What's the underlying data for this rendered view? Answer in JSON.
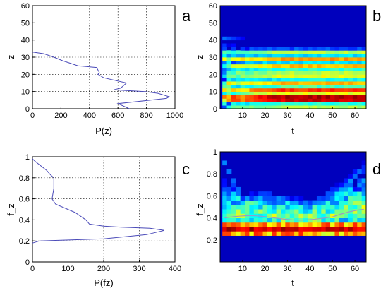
{
  "chart_data": [
    {
      "id": "a",
      "panel_letter": "a",
      "type": "line",
      "xlabel": "P(z)",
      "ylabel": "z",
      "xlim": [
        0,
        1000
      ],
      "ylim": [
        0,
        60
      ],
      "xticks": [
        "0",
        "200",
        "400",
        "600",
        "800",
        "1000"
      ],
      "yticks": [
        "0",
        "10",
        "20",
        "30",
        "40",
        "50",
        "60"
      ],
      "grid": true,
      "line_color": "#4a4ab8",
      "series": [
        {
          "x": [
            680,
            600,
            940,
            960,
            880,
            790,
            570,
            620,
            660,
            500,
            460,
            470,
            450,
            320,
            210,
            150,
            80,
            0
          ],
          "y": [
            0,
            3,
            6,
            7,
            9,
            10,
            11,
            12,
            15,
            18,
            20,
            21,
            24,
            25,
            28,
            30,
            32,
            33
          ]
        }
      ]
    },
    {
      "id": "b",
      "panel_letter": "b",
      "type": "heatmap",
      "xlabel": "t",
      "ylabel": "z",
      "xlim": [
        0,
        65
      ],
      "ylim": [
        0,
        60
      ],
      "xticks": [
        "10",
        "20",
        "30",
        "40",
        "50",
        "60"
      ],
      "yticks": [
        "0",
        "10",
        "20",
        "30",
        "40",
        "50",
        "60"
      ],
      "x_start": 1,
      "x_end": 65,
      "y_bin": 2,
      "columns": 32,
      "colormap": "jet",
      "band_profile_z": [
        0,
        2,
        4,
        6,
        8,
        10,
        12,
        14,
        16,
        18,
        20,
        22,
        24,
        26,
        28,
        30,
        32,
        34,
        36,
        38
      ],
      "band_profile_v": [
        0.55,
        0.42,
        0.92,
        0.95,
        0.6,
        0.82,
        0.45,
        0.7,
        0.38,
        0.6,
        0.55,
        0.42,
        0.68,
        0.35,
        0.72,
        0.35,
        0.55,
        0.2,
        0.05,
        0.02
      ]
    },
    {
      "id": "c",
      "panel_letter": "c",
      "type": "line",
      "xlabel": "P(fz)",
      "ylabel": "f_z",
      "xlim": [
        0,
        400
      ],
      "ylim": [
        0,
        1
      ],
      "xticks": [
        "0",
        "100",
        "200",
        "300",
        "400"
      ],
      "yticks": [
        "0",
        "0.2",
        "0.4",
        "0.6",
        "0.8",
        "1"
      ],
      "grid": true,
      "line_color": "#4a4ab8",
      "series": [
        {
          "x": [
            0,
            20,
            200,
            320,
            370,
            330,
            250,
            200,
            160,
            150,
            120,
            65,
            55,
            60,
            60,
            50,
            40,
            10,
            0
          ],
          "y": [
            0.18,
            0.2,
            0.22,
            0.26,
            0.3,
            0.32,
            0.33,
            0.34,
            0.36,
            0.4,
            0.47,
            0.55,
            0.6,
            0.7,
            0.8,
            0.83,
            0.87,
            0.95,
            0.98
          ]
        }
      ]
    },
    {
      "id": "d",
      "panel_letter": "d",
      "type": "heatmap",
      "xlabel": "t",
      "ylabel": "f_z",
      "xlim": [
        0,
        65
      ],
      "ylim": [
        0,
        1
      ],
      "xticks": [
        "10",
        "20",
        "30",
        "40",
        "50",
        "60"
      ],
      "yticks": [
        "0.2",
        "0.4",
        "0.6",
        "0.8",
        "1"
      ],
      "x_start": 1,
      "x_end": 65,
      "y_bin": 0.04,
      "columns": 32,
      "colormap": "jet",
      "floor_fz": 0.24,
      "overlay_line_color": "#9a9ac8"
    }
  ]
}
